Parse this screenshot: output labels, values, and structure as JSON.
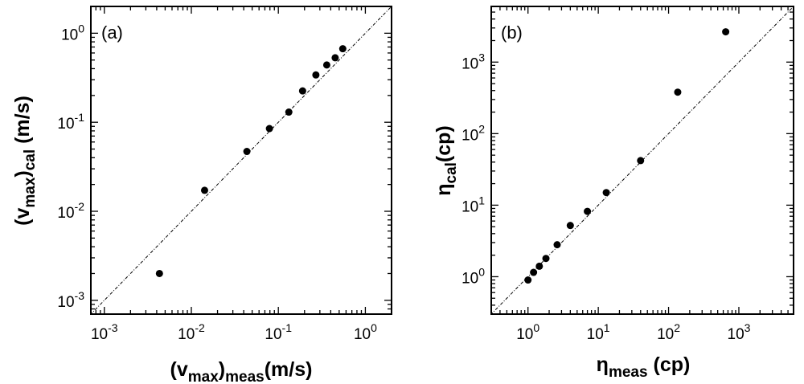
{
  "chart_data": [
    {
      "type": "scatter",
      "panel_label": "(a)",
      "x_scale": "log",
      "y_scale": "log",
      "xlim": [
        0.0007,
        2.0
      ],
      "ylim": [
        0.0007,
        2.0
      ],
      "xlabel": {
        "base": "(v",
        "sub1": "max",
        "mid": ")",
        "sub2": "meas",
        "tail": "(m/s)"
      },
      "ylabel": {
        "base": "(v",
        "sub1": "max",
        "mid": ")",
        "sub2": "cal",
        "tail": " (m/s)"
      },
      "x_ticks": [
        {
          "value": 0.001,
          "base": "10",
          "exp": "-3"
        },
        {
          "value": 0.01,
          "base": "10",
          "exp": "-2"
        },
        {
          "value": 0.1,
          "base": "10",
          "exp": "-1"
        },
        {
          "value": 1,
          "base": "10",
          "exp": "0"
        }
      ],
      "y_ticks": [
        {
          "value": 0.001,
          "base": "10",
          "exp": "-3"
        },
        {
          "value": 0.01,
          "base": "10",
          "exp": "-2"
        },
        {
          "value": 0.1,
          "base": "10",
          "exp": "-1"
        },
        {
          "value": 1,
          "base": "10",
          "exp": "0"
        }
      ],
      "reference_line": "y=x",
      "points": [
        {
          "x": 0.0043,
          "y": 0.002
        },
        {
          "x": 0.0142,
          "y": 0.0172
        },
        {
          "x": 0.0435,
          "y": 0.047
        },
        {
          "x": 0.079,
          "y": 0.085
        },
        {
          "x": 0.132,
          "y": 0.13
        },
        {
          "x": 0.19,
          "y": 0.225
        },
        {
          "x": 0.27,
          "y": 0.34
        },
        {
          "x": 0.36,
          "y": 0.44
        },
        {
          "x": 0.45,
          "y": 0.53
        },
        {
          "x": 0.55,
          "y": 0.67
        }
      ]
    },
    {
      "type": "scatter",
      "panel_label": "(b)",
      "x_scale": "log",
      "y_scale": "log",
      "xlim": [
        0.3,
        6000
      ],
      "ylim": [
        0.3,
        6000
      ],
      "xlabel": {
        "base": "η",
        "sub1": "meas",
        "mid": "",
        "sub2": "",
        "tail": " (cp)"
      },
      "ylabel": {
        "base": "η",
        "sub1": "cal",
        "mid": "",
        "sub2": "",
        "tail": "(cp)"
      },
      "x_ticks": [
        {
          "value": 1,
          "base": "10",
          "exp": "0"
        },
        {
          "value": 10,
          "base": "10",
          "exp": "1"
        },
        {
          "value": 100,
          "base": "10",
          "exp": "2"
        },
        {
          "value": 1000,
          "base": "10",
          "exp": "3"
        }
      ],
      "y_ticks": [
        {
          "value": 1,
          "base": "10",
          "exp": "0"
        },
        {
          "value": 10,
          "base": "10",
          "exp": "1"
        },
        {
          "value": 100,
          "base": "10",
          "exp": "2"
        },
        {
          "value": 1000,
          "base": "10",
          "exp": "3"
        }
      ],
      "reference_line": "y=x",
      "points": [
        {
          "x": 1.0,
          "y": 0.9
        },
        {
          "x": 1.2,
          "y": 1.15
        },
        {
          "x": 1.45,
          "y": 1.4
        },
        {
          "x": 1.8,
          "y": 1.8
        },
        {
          "x": 2.6,
          "y": 2.8
        },
        {
          "x": 4.0,
          "y": 5.2
        },
        {
          "x": 7.0,
          "y": 8.2
        },
        {
          "x": 13.0,
          "y": 15.0
        },
        {
          "x": 40.0,
          "y": 42.0
        },
        {
          "x": 135.0,
          "y": 380.0
        },
        {
          "x": 650.0,
          "y": 2650.0
        }
      ]
    }
  ]
}
